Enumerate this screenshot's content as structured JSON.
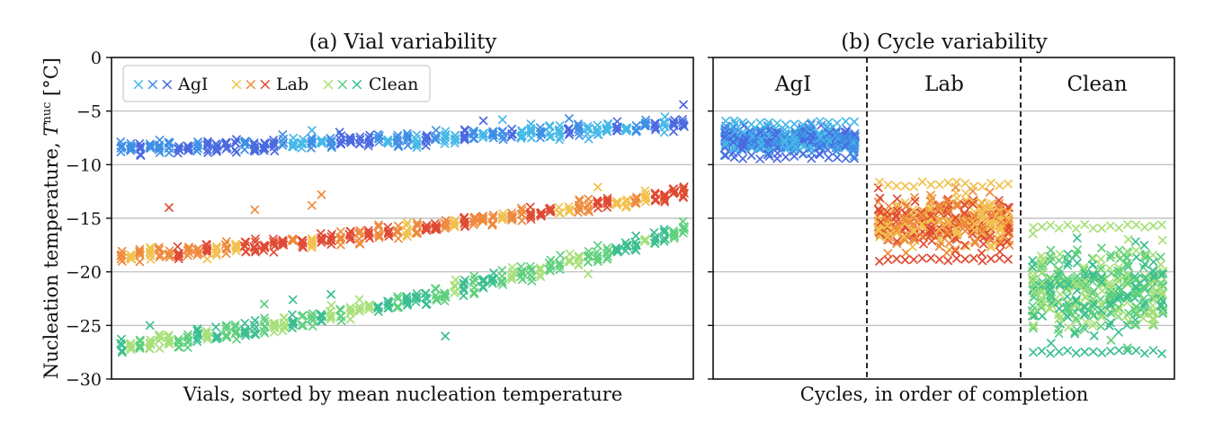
{
  "figure": {
    "left_panel": {
      "title": "(a) Vial variability",
      "xlabel": "Vials, sorted by mean nucleation temperature",
      "ylabel_main": "Nucleation temperature, ",
      "ylabel_symbol": "T",
      "ylabel_sup": "nuc",
      "ylabel_unit": " [°C]"
    },
    "right_panel": {
      "title": "(b) Cycle variability",
      "xlabel": "Cycles, in order of completion",
      "groups": [
        "AgI",
        "Lab",
        "Clean"
      ]
    },
    "yticks": [
      "0",
      "−5",
      "−10",
      "−15",
      "−20",
      "−25",
      "−30"
    ],
    "legend": [
      {
        "label": "AgI",
        "markers": "×××",
        "colors": [
          "#45b8e8",
          "#3f8fe6",
          "#4a6ae0"
        ]
      },
      {
        "label": "Lab",
        "markers": "×××",
        "colors": [
          "#f2c14e",
          "#ee8a3c",
          "#e04a32"
        ]
      },
      {
        "label": "Clean",
        "markers": "×××",
        "colors": [
          "#a7e07a",
          "#5fd07e",
          "#3cbf90"
        ]
      }
    ]
  },
  "chart_data": [
    {
      "type": "scatter",
      "marker": "x",
      "title": "(a) Vial variability",
      "xlabel": "Vials, sorted by mean nucleation temperature",
      "ylabel": "Nucleation temperature, T^nuc [°C]",
      "ylim": [
        -30,
        0
      ],
      "yticks": [
        0,
        -5,
        -10,
        -15,
        -20,
        -25,
        -30
      ],
      "grid": "horizontal",
      "legend": "top-left",
      "series": [
        {
          "name": "AgI",
          "x_count": 60,
          "mean_start": -8.5,
          "mean_end": -6.2,
          "spread": 1.0,
          "outliers": [
            [
              20,
              -6.8
            ],
            [
              38,
              -5.9
            ],
            [
              40,
              -5.8
            ],
            [
              47,
              -5.7
            ],
            [
              59,
              -4.4
            ]
          ],
          "colors": [
            "#45b8e8",
            "#3f8fe6",
            "#4a6ae0"
          ]
        },
        {
          "name": "Lab",
          "x_count": 60,
          "mean_start": -18.5,
          "mean_end": -12.5,
          "spread": 1.0,
          "outliers": [
            [
              5,
              -14.0
            ],
            [
              14,
              -14.2
            ],
            [
              20,
              -13.8
            ],
            [
              21,
              -12.8
            ],
            [
              50,
              -12.1
            ],
            [
              9,
              -18.8
            ]
          ],
          "colors": [
            "#f2c14e",
            "#ee8a3c",
            "#e04a32"
          ]
        },
        {
          "name": "Clean",
          "x_count": 60,
          "mean_start": -27.0,
          "mean_end": -16.0,
          "spread": 1.2,
          "outliers": [
            [
              3,
              -25.0
            ],
            [
              15,
              -23.0
            ],
            [
              18,
              -22.6
            ],
            [
              22,
              -22.1
            ],
            [
              34,
              -26.0
            ],
            [
              38,
              -21.5
            ],
            [
              49,
              -20.2
            ]
          ],
          "colors": [
            "#a7e07a",
            "#5fd07e",
            "#3cbf90"
          ]
        }
      ]
    },
    {
      "type": "scatter",
      "marker": "x",
      "title": "(b) Cycle variability",
      "xlabel": "Cycles, in order of completion",
      "ylim": [
        -30,
        0
      ],
      "grid": "horizontal",
      "groups": [
        {
          "name": "AgI",
          "cycles": 16,
          "y_min": -9.5,
          "y_max": -5.8,
          "colors": [
            "#45b8e8",
            "#3f8fe6",
            "#4a6ae0"
          ]
        },
        {
          "name": "Lab",
          "cycles": 16,
          "y_min": -19.2,
          "y_max": -11.6,
          "colors": [
            "#f2c14e",
            "#ee8a3c",
            "#e04a32"
          ]
        },
        {
          "name": "Clean",
          "cycles": 16,
          "y_min": -27.8,
          "y_max": -15.5,
          "colors": [
            "#a7e07a",
            "#5fd07e",
            "#3cbf90"
          ]
        }
      ]
    }
  ]
}
